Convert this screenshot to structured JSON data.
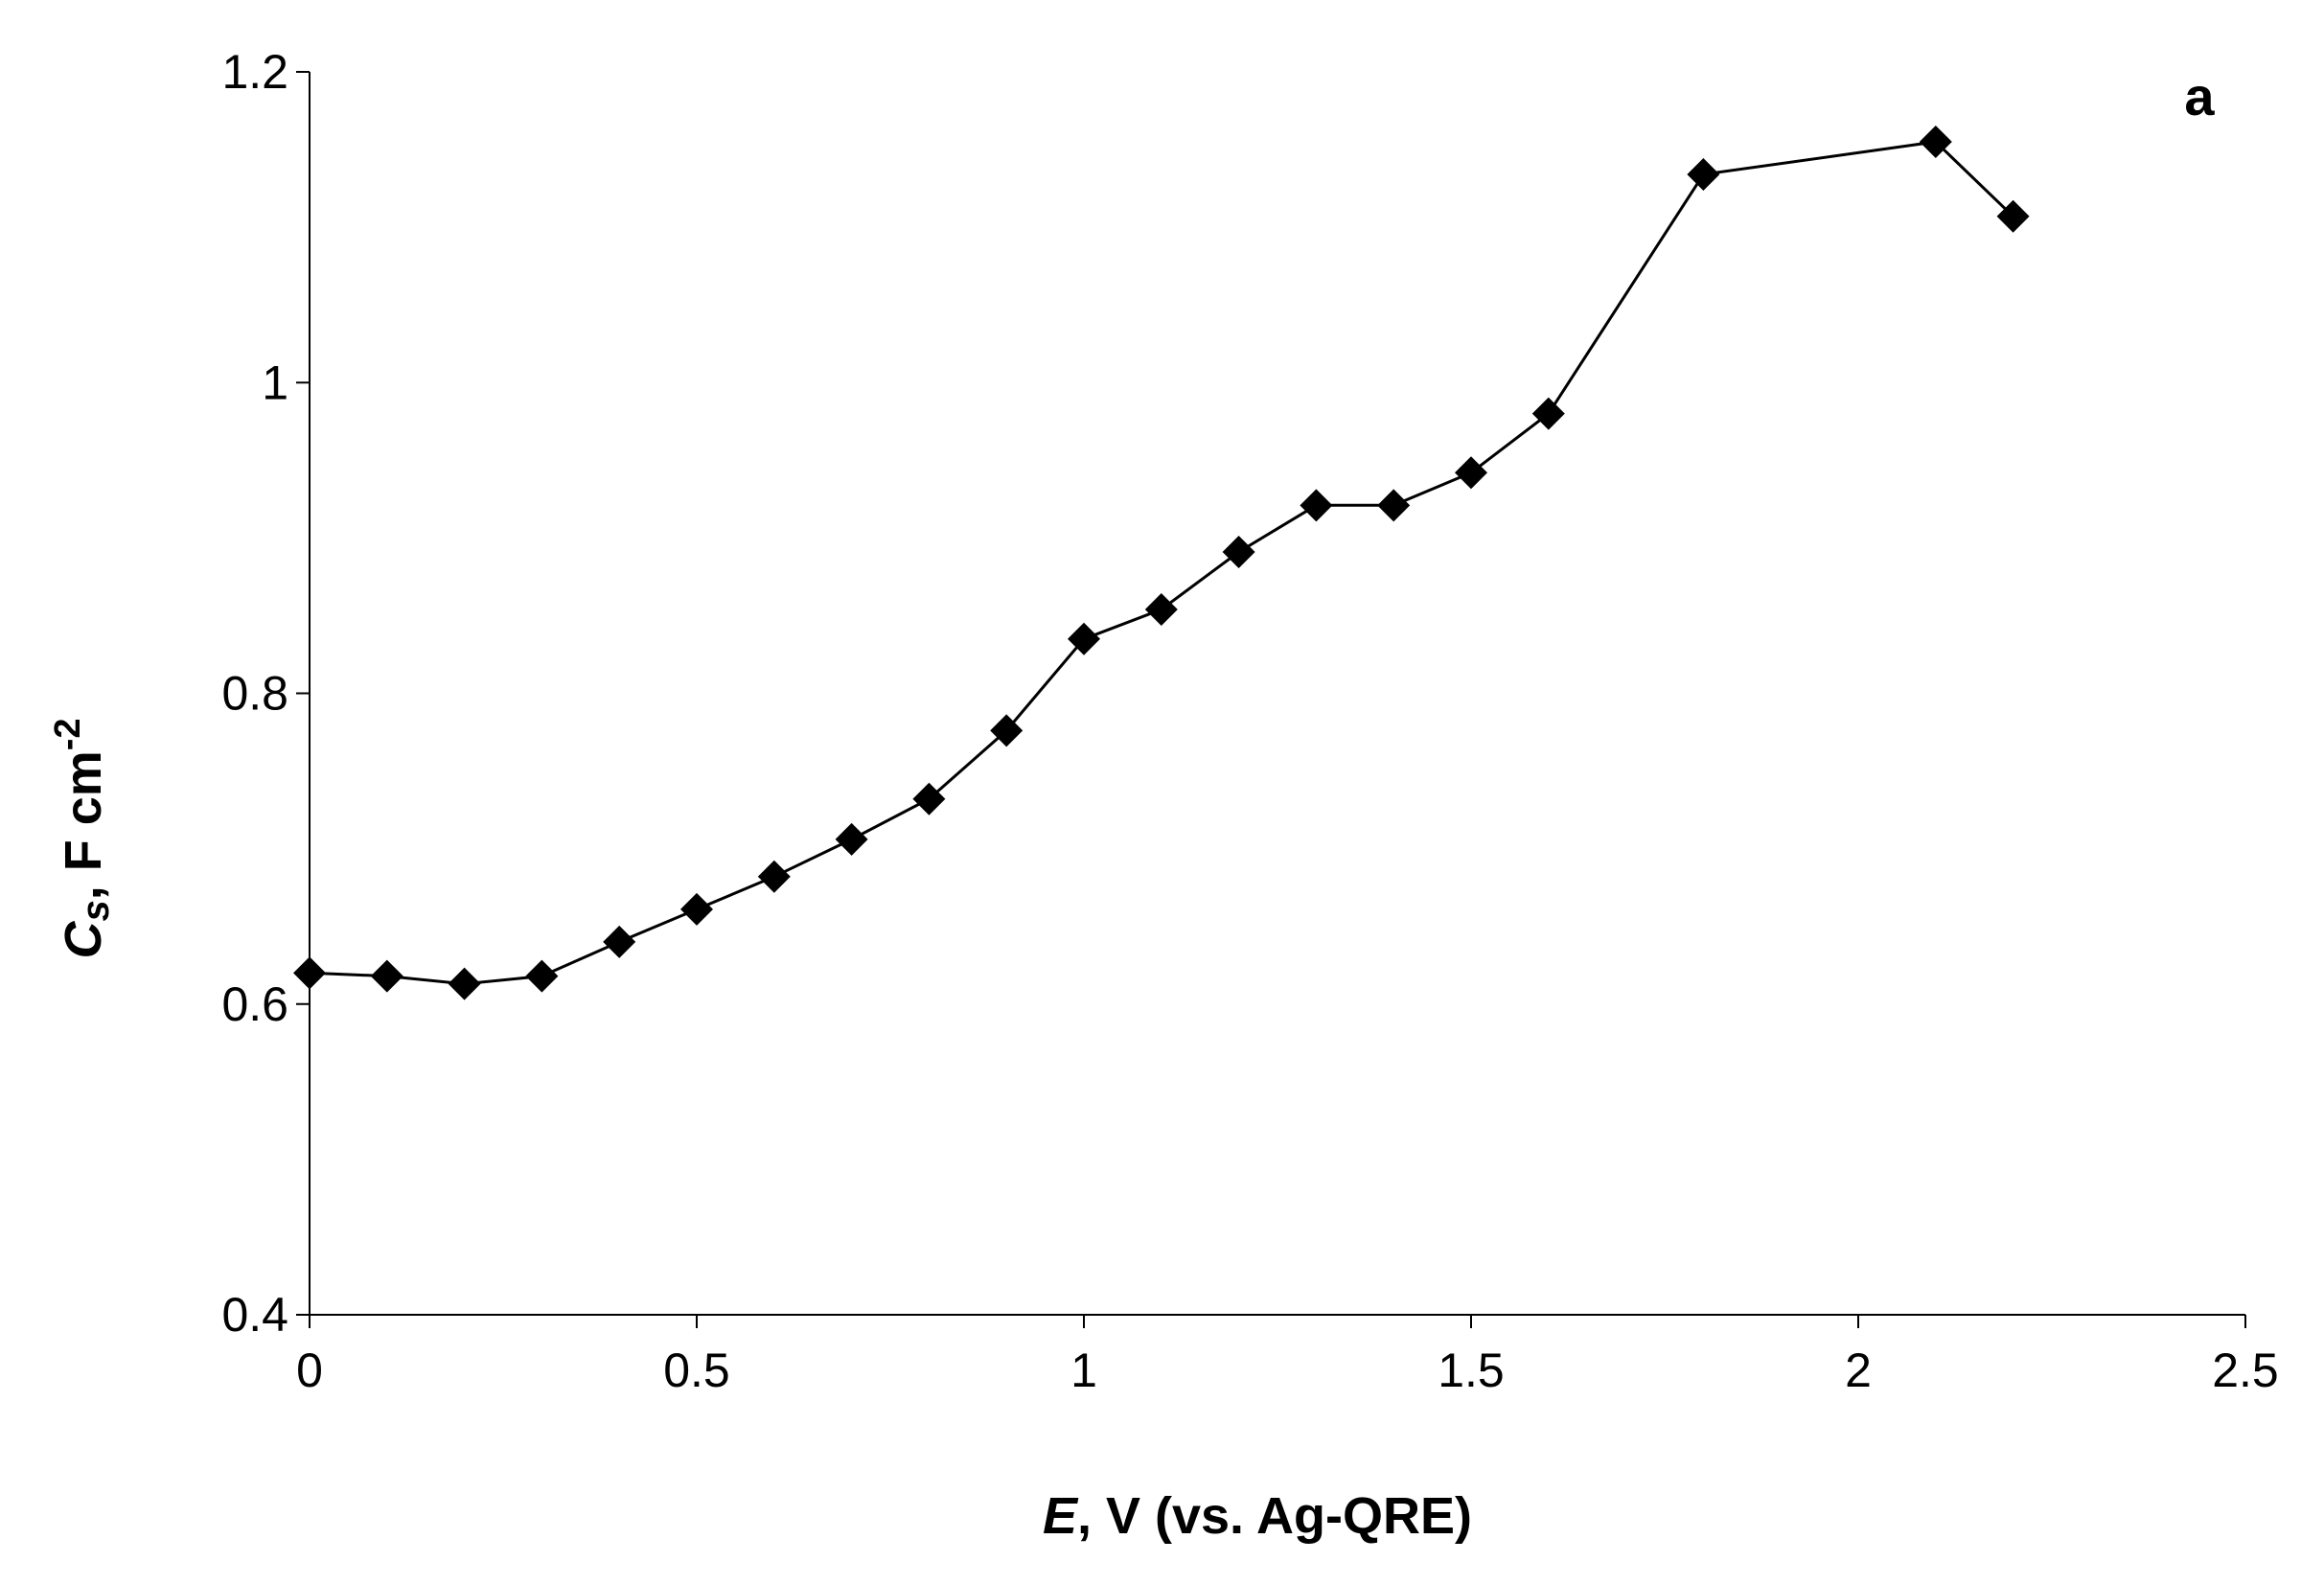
{
  "chart_data": {
    "type": "line",
    "panel_label": "a",
    "xlabel": {
      "italic": "E",
      "rest": ", V (vs. Ag-QRE)"
    },
    "ylabel": {
      "symbol": "C",
      "subscript": "s",
      "rest": ", F cm",
      "superscript": "-2"
    },
    "xlim": [
      0,
      2.5
    ],
    "ylim": [
      0.4,
      1.2
    ],
    "x_ticks": [
      "0",
      "0.5",
      "1",
      "1.5",
      "2",
      "2.5"
    ],
    "y_ticks": [
      "0.4",
      "0.6",
      "0.8",
      "1",
      "1.2"
    ],
    "grid": false,
    "legend": "none",
    "marker": "diamond",
    "line_color": "#000000",
    "series": [
      {
        "x": [
          0,
          0.1,
          0.2,
          0.3,
          0.4,
          0.5,
          0.6,
          0.7,
          0.8,
          0.9,
          1.0,
          1.1,
          1.2,
          1.3,
          1.4,
          1.5,
          1.6,
          1.8,
          2.1,
          2.2
        ],
        "y": [
          0.62,
          0.618,
          0.613,
          0.618,
          0.64,
          0.661,
          0.682,
          0.706,
          0.732,
          0.776,
          0.835,
          0.854,
          0.891,
          0.921,
          0.921,
          0.942,
          0.98,
          1.134,
          1.155,
          1.107
        ]
      }
    ]
  }
}
